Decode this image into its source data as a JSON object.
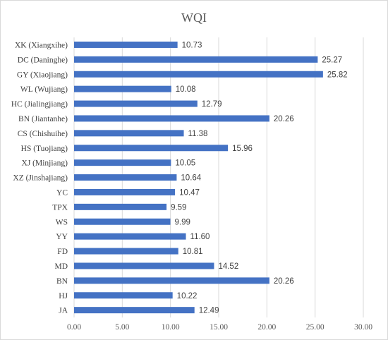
{
  "chart_data": {
    "type": "bar",
    "orientation": "horizontal",
    "title": "WQI",
    "xlabel": "",
    "ylabel": "",
    "xlim": [
      0,
      30
    ],
    "ticks": [
      "0.00",
      "5.00",
      "10.00",
      "15.00",
      "20.00",
      "25.00",
      "30.00"
    ],
    "grid": true,
    "legend": "none",
    "bar_color": "#4472c4",
    "categories": [
      "XK (Xiangxihe)",
      "DC (Daninghe)",
      "GY (Xiaojiang)",
      "WL (Wujiang)",
      "HC (Jialingjiang)",
      "BN (Jiantanhe)",
      "CS (Chishuihe)",
      "HS (Tuojiang)",
      "XJ (Minjiang)",
      "XZ (Jinshajiang)",
      "YC",
      "TPX",
      "WS",
      "YY",
      "FD",
      "MD",
      "BN",
      "HJ",
      "JA"
    ],
    "values": [
      10.73,
      25.27,
      25.82,
      10.08,
      12.79,
      20.26,
      11.38,
      15.96,
      10.05,
      10.64,
      10.47,
      9.59,
      9.99,
      11.6,
      10.81,
      14.52,
      20.26,
      10.22,
      12.49
    ],
    "labels": [
      "10.73",
      "25.27",
      "25.82",
      "10.08",
      "12.79",
      "20.26",
      "11.38",
      "15.96",
      "10.05",
      "10.64",
      "10.47",
      "9.59",
      "9.99",
      "11.60",
      "10.81",
      "14.52",
      "20.26",
      "10.22",
      "12.49"
    ]
  }
}
